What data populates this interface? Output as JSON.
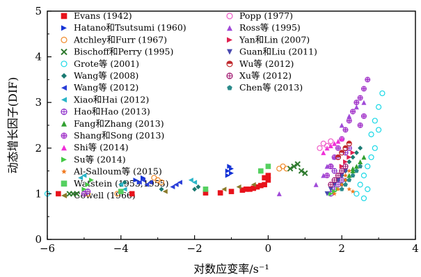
{
  "chart_data": {
    "type": "scatter",
    "title": "",
    "xlabel": "对数应变率/s⁻¹",
    "ylabel": "动态增长因子(DIF)",
    "xlim": [
      -6,
      4
    ],
    "ylim": [
      0,
      5
    ],
    "xticks": [
      "−6",
      "−4",
      "−2",
      "0",
      "2",
      "4"
    ],
    "yticks": [
      "0",
      "1",
      "2",
      "3",
      "4",
      "5"
    ],
    "grid": false,
    "legend_placement": "top-left, two columns",
    "series": [
      {
        "name": "Evans (1942)",
        "color": "#e8121b",
        "marker": "square",
        "x": [
          -5.7,
          -3.7,
          -1.7,
          -1.3,
          -1.0,
          -0.7,
          -0.6,
          -0.5,
          -0.4,
          -0.3,
          -0.2,
          -0.1,
          0.0,
          0.0,
          -0.1
        ],
        "y": [
          1.0,
          1.0,
          1.02,
          1.02,
          1.05,
          1.08,
          1.1,
          1.1,
          1.12,
          1.15,
          1.18,
          1.2,
          1.3,
          1.4,
          1.35
        ]
      },
      {
        "name": "Hatano和Tsutsumi (1960)",
        "color": "#1533d6",
        "marker": "triangle-right",
        "x": [
          -3.6,
          -3.5,
          -3.4,
          -1.1,
          -1.0,
          -1.1,
          -1.0,
          -1.05
        ],
        "y": [
          1.3,
          1.25,
          1.35,
          1.4,
          1.45,
          1.5,
          1.55,
          1.6
        ]
      },
      {
        "name": "Atchley和Furr (1967)",
        "color": "#f08a2a",
        "marker": "circle-open",
        "x": [
          -5.0,
          -4.9,
          -4.1,
          -3.1,
          -3.0,
          -2.9,
          0.3,
          0.4,
          0.5
        ],
        "y": [
          1.0,
          1.0,
          1.0,
          1.35,
          1.3,
          1.25,
          1.55,
          1.6,
          1.55
        ]
      },
      {
        "name": "Bischoff和Perry (1995)",
        "color": "#2f7a2f",
        "marker": "x",
        "x": [
          -5.4,
          -5.3,
          -5.2,
          0.6,
          0.7,
          0.8,
          0.9,
          1.0
        ],
        "y": [
          1.0,
          1.0,
          1.0,
          1.55,
          1.6,
          1.65,
          1.5,
          1.45
        ]
      },
      {
        "name": "Grote等 (2001)",
        "color": "#19d8e6",
        "marker": "circle-open",
        "x": [
          -6.0,
          2.4,
          2.5,
          2.6,
          2.7,
          2.8,
          2.9,
          3.0,
          2.8,
          2.9,
          3.0,
          3.1,
          2.7,
          2.6
        ],
        "y": [
          1.0,
          1.0,
          1.2,
          1.4,
          1.6,
          1.8,
          2.0,
          2.4,
          2.3,
          2.6,
          2.9,
          3.2,
          1.1,
          0.9
        ]
      },
      {
        "name": "Wang等 (2008)",
        "color": "#1a7a72",
        "marker": "diamond",
        "x": [
          -4.0,
          -3.9,
          -2.9,
          -2.0,
          -1.9,
          1.9,
          2.0,
          2.1,
          2.2,
          2.3,
          2.4,
          2.5,
          2.0,
          2.1
        ],
        "y": [
          1.2,
          1.25,
          1.1,
          1.1,
          1.15,
          1.3,
          1.4,
          1.5,
          1.7,
          1.8,
          1.9,
          2.0,
          1.2,
          1.3
        ]
      },
      {
        "name": "Wang等 (2012)",
        "color": "#2a3ed8",
        "marker": "triangle-left",
        "x": [
          -3.5,
          -3.4,
          -3.3,
          -3.2,
          -2.6,
          -2.5,
          -2.4
        ],
        "y": [
          1.25,
          1.3,
          1.2,
          1.25,
          1.15,
          1.2,
          1.25
        ]
      },
      {
        "name": "Xiao和Hai (2012)",
        "color": "#2ab5c8",
        "marker": "triangle-left",
        "x": [
          -5.1,
          -5.0,
          -4.0,
          -3.9,
          -2.1,
          -2.0
        ],
        "y": [
          1.35,
          1.4,
          1.2,
          1.1,
          1.3,
          1.25
        ]
      },
      {
        "name": "Hao和Hao (2013)",
        "color": "#8a2ac8",
        "marker": "circle-cross",
        "x": [
          -5.0,
          -4.9,
          1.7,
          1.8,
          1.9,
          2.0,
          1.8,
          1.7,
          1.9,
          2.1,
          2.2
        ],
        "y": [
          1.0,
          1.05,
          1.0,
          1.1,
          1.2,
          1.3,
          1.5,
          1.6,
          1.8,
          1.9,
          2.0
        ]
      },
      {
        "name": "Fang和Zhang (2013)",
        "color": "#30a030",
        "marker": "triangle-up",
        "x": [
          2.3,
          2.4,
          2.5,
          2.6,
          2.2,
          2.3
        ],
        "y": [
          1.5,
          1.6,
          1.7,
          1.8,
          1.4,
          1.55
        ]
      },
      {
        "name": "Shang和Song (2013)",
        "color": "#a030c8",
        "marker": "plus-circle",
        "x": [
          1.6,
          1.7,
          1.8,
          1.9,
          2.0,
          2.1,
          2.2,
          2.3,
          2.4,
          2.5,
          2.6,
          2.7,
          2.5,
          2.6
        ],
        "y": [
          1.4,
          1.6,
          1.8,
          2.0,
          2.2,
          2.4,
          2.6,
          2.8,
          3.0,
          3.1,
          3.3,
          3.5,
          2.5,
          2.7
        ]
      },
      {
        "name": "Shi等 (2014)",
        "color": "#f030d8",
        "marker": "triangle-up",
        "x": [
          1.5,
          1.6,
          1.7,
          1.8,
          1.9,
          2.0
        ],
        "y": [
          1.9,
          2.0,
          2.05,
          2.1,
          2.15,
          2.2
        ]
      },
      {
        "name": "Su等 (2014)",
        "color": "#44c844",
        "marker": "triangle-right",
        "x": [
          -5.0,
          -4.9,
          -4.8,
          1.7,
          1.8,
          1.9
        ],
        "y": [
          1.1,
          1.2,
          1.3,
          1.0,
          1.05,
          1.1
        ]
      },
      {
        "name": "Al-Salloum等 (2015)",
        "color": "#f07a20",
        "marker": "star",
        "x": [
          1.8,
          1.9,
          2.0,
          2.1,
          2.2,
          2.3,
          2.1,
          2.2
        ],
        "y": [
          1.0,
          1.1,
          1.2,
          1.3,
          1.1,
          1.05,
          1.4,
          1.5
        ]
      },
      {
        "name": "Watstein (1953,1955)",
        "color": "#55d060",
        "marker": "square",
        "x": [
          -4.0,
          -1.7,
          -0.2,
          0.0
        ],
        "y": [
          1.05,
          1.1,
          1.5,
          1.6
        ]
      },
      {
        "name": "Cowell (1966)",
        "color": "#8a7a2a",
        "marker": "triangle-left",
        "x": [
          -2.8,
          -1.2,
          -0.8,
          -0.4
        ],
        "y": [
          1.05,
          1.1,
          1.15,
          1.2
        ]
      },
      {
        "name": "Popp (1977)",
        "color": "#f05cc8",
        "marker": "circle-open",
        "x": [
          1.4,
          1.5,
          1.6,
          1.7
        ],
        "y": [
          2.0,
          2.1,
          2.05,
          2.15
        ]
      },
      {
        "name": "Ross等 (1995)",
        "color": "#a04ad8",
        "marker": "triangle-up",
        "x": [
          1.3,
          1.5,
          1.6,
          1.8,
          2.0,
          2.2,
          2.4,
          2.6,
          0.3
        ],
        "y": [
          1.2,
          1.4,
          1.6,
          1.8,
          2.5,
          2.7,
          2.9,
          3.0,
          1.0
        ]
      },
      {
        "name": "Yan和Lin (2007)",
        "color": "#e02050",
        "marker": "triangle-right",
        "x": [
          2.0,
          2.1,
          2.2,
          2.3
        ],
        "y": [
          1.6,
          1.7,
          1.8,
          1.9
        ]
      },
      {
        "name": "Guan和Liu (2011)",
        "color": "#4a4ab0",
        "marker": "triangle-down",
        "x": [
          1.6,
          1.7,
          1.8,
          1.9,
          2.0,
          2.1
        ],
        "y": [
          1.0,
          1.1,
          1.2,
          1.3,
          1.4,
          1.5
        ]
      },
      {
        "name": "Wu等 (2012)",
        "color": "#c0282c",
        "marker": "half-circle",
        "x": [
          1.9,
          2.0,
          2.1,
          2.2
        ],
        "y": [
          1.8,
          1.9,
          2.0,
          2.1
        ]
      },
      {
        "name": "Xu等 (2012)",
        "color": "#a01870",
        "marker": "circle-cross",
        "x": [
          1.7,
          1.8,
          1.9,
          2.0,
          2.1
        ],
        "y": [
          1.2,
          1.3,
          1.4,
          1.5,
          1.6
        ]
      },
      {
        "name": "Chen等 (2013)",
        "color": "#2a8a8a",
        "marker": "pentagon",
        "x": [
          2.0,
          2.1,
          2.2,
          2.3,
          2.4,
          2.5
        ],
        "y": [
          1.1,
          1.2,
          1.3,
          1.4,
          1.5,
          1.6
        ]
      }
    ]
  }
}
